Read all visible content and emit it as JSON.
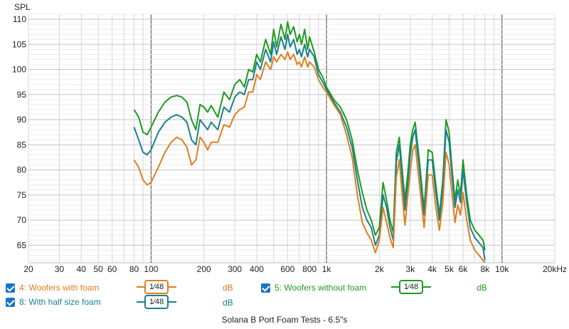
{
  "chart_data": {
    "type": "line",
    "title": "Solana B Port Foam Tests - 6.5\"s",
    "ylabel": "SPL",
    "xlabel": "",
    "xscale": "log",
    "xlim": [
      20,
      20000
    ],
    "ylim": [
      61.5,
      111
    ],
    "y_ticks": [
      65,
      70,
      75,
      80,
      85,
      90,
      95,
      100,
      105,
      110
    ],
    "x_ticks": [
      {
        "value": 20,
        "label": "20"
      },
      {
        "value": 30,
        "label": "30"
      },
      {
        "value": 40,
        "label": "40"
      },
      {
        "value": 50,
        "label": "50"
      },
      {
        "value": 60,
        "label": "60"
      },
      {
        "value": 80,
        "label": "80"
      },
      {
        "value": 100,
        "label": "100"
      },
      {
        "value": 200,
        "label": "200"
      },
      {
        "value": 300,
        "label": "300"
      },
      {
        "value": 400,
        "label": "400"
      },
      {
        "value": 600,
        "label": "600"
      },
      {
        "value": 800,
        "label": "800"
      },
      {
        "value": 1000,
        "label": "1k"
      },
      {
        "value": 2000,
        "label": "2k"
      },
      {
        "value": 3000,
        "label": "3k"
      },
      {
        "value": 4000,
        "label": "4k"
      },
      {
        "value": 5000,
        "label": "5k"
      },
      {
        "value": 6000,
        "label": "6k"
      },
      {
        "value": 8000,
        "label": "8k"
      },
      {
        "value": 10000,
        "label": "10k"
      },
      {
        "value": 20000,
        "label": "20kHz"
      }
    ],
    "grid": true,
    "legend_position": "bottom",
    "series": [
      {
        "name": "5: Woofers without foam",
        "color": "#1f9a1f",
        "x": [
          80,
          85,
          90,
          95,
          100,
          110,
          120,
          130,
          140,
          150,
          160,
          170,
          180,
          190,
          200,
          210,
          220,
          240,
          260,
          280,
          300,
          320,
          340,
          360,
          380,
          400,
          420,
          450,
          480,
          500,
          520,
          550,
          580,
          600,
          620,
          650,
          680,
          700,
          720,
          750,
          780,
          800,
          850,
          900,
          950,
          1000,
          1100,
          1200,
          1300,
          1400,
          1500,
          1600,
          1700,
          1800,
          1900,
          2000,
          2100,
          2200,
          2300,
          2400,
          2500,
          2600,
          2700,
          2800,
          2900,
          3000,
          3100,
          3200,
          3400,
          3600,
          3800,
          4000,
          4200,
          4400,
          4600,
          4800,
          5000,
          5200,
          5400,
          5600,
          5800,
          6000,
          6300,
          6600,
          7000,
          7400,
          7800,
          8000
        ],
        "y": [
          92,
          90.5,
          87.5,
          87,
          88.5,
          91.5,
          93.5,
          94.5,
          94.8,
          94.5,
          93.5,
          90,
          88,
          93,
          92.5,
          91.5,
          92.8,
          90.5,
          95.5,
          94,
          97,
          98,
          96.5,
          100,
          99.5,
          103,
          101.5,
          106,
          103,
          108,
          104.5,
          109,
          106,
          109.5,
          107,
          108.5,
          105.5,
          107,
          105,
          108,
          104,
          106.5,
          103.5,
          100,
          98.5,
          96.5,
          94,
          92.5,
          90,
          86,
          80,
          75.5,
          72,
          70,
          67,
          68.5,
          77.5,
          74,
          70,
          67.5,
          83.5,
          86.5,
          80,
          74,
          79,
          85,
          88,
          89.5,
          81,
          72,
          84,
          83.5,
          77,
          71,
          78,
          90,
          87.5,
          80,
          74,
          78,
          75,
          82,
          75,
          70,
          68,
          67,
          66,
          64
        ]
      },
      {
        "name": "8: With half size foam",
        "color": "#1a8090",
        "x": [
          80,
          85,
          90,
          95,
          100,
          110,
          120,
          130,
          140,
          150,
          160,
          170,
          180,
          190,
          200,
          210,
          220,
          240,
          260,
          280,
          300,
          320,
          340,
          360,
          380,
          400,
          420,
          450,
          480,
          500,
          520,
          550,
          580,
          600,
          620,
          650,
          680,
          700,
          720,
          750,
          780,
          800,
          850,
          900,
          950,
          1000,
          1100,
          1200,
          1300,
          1400,
          1500,
          1600,
          1700,
          1800,
          1900,
          2000,
          2100,
          2200,
          2300,
          2400,
          2500,
          2600,
          2700,
          2800,
          2900,
          3000,
          3100,
          3200,
          3400,
          3600,
          3800,
          4000,
          4200,
          4400,
          4600,
          4800,
          5000,
          5200,
          5400,
          5600,
          5800,
          6000,
          6300,
          6600,
          7000,
          7400,
          7800,
          8000
        ],
        "y": [
          88.5,
          86,
          83.5,
          83,
          84,
          87.5,
          89.5,
          90.5,
          91,
          90.5,
          89.5,
          86,
          85,
          90,
          89,
          88,
          89.5,
          88,
          92.5,
          91.5,
          94.5,
          95.5,
          95,
          98,
          98,
          101.5,
          100,
          104,
          101.5,
          105.5,
          103,
          106.5,
          104,
          107,
          104.5,
          106,
          103,
          104,
          102.5,
          105,
          102.5,
          104,
          102.5,
          99,
          97.5,
          96,
          93.5,
          91.5,
          88.5,
          84.5,
          78,
          72.5,
          70,
          68.5,
          65,
          67,
          75,
          72.5,
          68.5,
          66,
          81.5,
          85,
          78.5,
          72,
          77,
          83,
          86.5,
          88,
          79.5,
          71,
          82,
          82,
          75.5,
          70,
          76.5,
          88,
          85.5,
          78.5,
          72.5,
          76,
          73.5,
          80,
          73.5,
          68.5,
          66.5,
          65.5,
          64.5,
          62
        ]
      },
      {
        "name": "4: Woofers with foam",
        "color": "#e07e1c",
        "x": [
          80,
          85,
          90,
          95,
          100,
          110,
          120,
          130,
          140,
          150,
          160,
          170,
          180,
          190,
          200,
          210,
          220,
          240,
          260,
          280,
          300,
          320,
          340,
          360,
          380,
          400,
          420,
          450,
          480,
          500,
          520,
          550,
          580,
          600,
          620,
          650,
          680,
          700,
          720,
          750,
          780,
          800,
          850,
          900,
          950,
          1000,
          1100,
          1200,
          1300,
          1400,
          1500,
          1600,
          1700,
          1800,
          1900,
          2000,
          2100,
          2200,
          2300,
          2400,
          2500,
          2600,
          2700,
          2800,
          2900,
          3000,
          3100,
          3200,
          3400,
          3600,
          3800,
          4000,
          4200,
          4400,
          4600,
          4800,
          5000,
          5200,
          5400,
          5600,
          5800,
          6000,
          6300,
          6600,
          7000,
          7400,
          7800,
          8000
        ],
        "y": [
          82,
          80.5,
          78,
          77,
          77.5,
          80.5,
          83.5,
          85.5,
          86.5,
          86,
          84.5,
          81,
          82,
          86.5,
          85.5,
          84,
          85.5,
          85.5,
          89,
          88.5,
          91,
          92,
          92.5,
          95.5,
          95.5,
          99,
          98,
          101.5,
          100,
          102.5,
          101.5,
          103,
          102,
          103.5,
          102,
          103,
          101,
          101.5,
          100.5,
          102.5,
          100.5,
          101.5,
          100.5,
          98,
          96.5,
          95.5,
          93,
          91,
          87,
          82.5,
          75,
          69.5,
          67.5,
          66,
          63.5,
          66,
          72.5,
          69.5,
          66.5,
          64.5,
          78.5,
          82,
          75,
          69,
          74.5,
          79.5,
          84,
          85,
          76.5,
          68.5,
          79,
          79,
          72.5,
          68,
          73.5,
          83.5,
          81,
          75,
          69.5,
          73,
          71,
          75.5,
          70,
          66,
          64,
          63,
          62,
          61.5
        ]
      }
    ]
  },
  "legend": {
    "items": [
      {
        "label": "4: Woofers with foam",
        "color": "#e07e1c",
        "smoothing": "1⁄48",
        "unit": "dB"
      },
      {
        "label": "5: Woofers without foam",
        "color": "#1f9a1f",
        "smoothing": "1⁄48",
        "unit": "dB"
      },
      {
        "label": "8: With half size foam",
        "color": "#1a8090",
        "smoothing": "1⁄48",
        "unit": "dB"
      }
    ]
  }
}
